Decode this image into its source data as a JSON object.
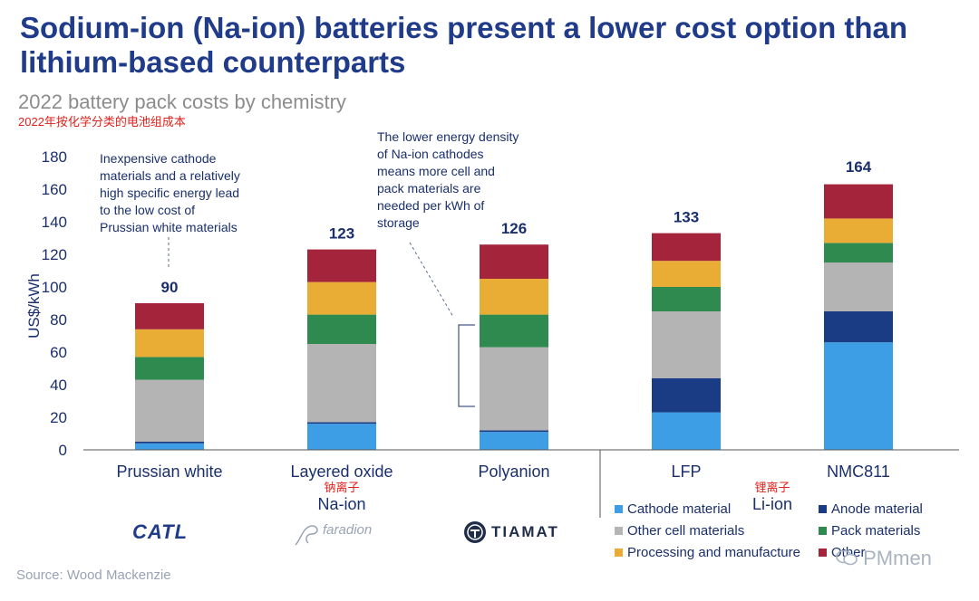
{
  "headline": "Sodium-ion (Na-ion) batteries present a lower cost option than lithium-based counterparts",
  "subtitle": "2022 battery pack costs by chemistry",
  "subtitle_cn": "2022年按化学分类的电池组成本",
  "source": "Source: Wood Mackenzie",
  "watermark": "PMmen",
  "logos": {
    "catl": "CATL",
    "faradion": "faradion",
    "tiamat": "TIAMAT"
  },
  "colors": {
    "cathode": "#3d9ee6",
    "anode": "#1a3c84",
    "other_cell": "#b4b4b4",
    "pack": "#2f8a4f",
    "processing": "#e9ad35",
    "other": "#a3243b",
    "axis_text": "#1a2f6e",
    "cn_text": "#e0211b"
  },
  "chart_data": {
    "type": "bar",
    "stacked": true,
    "ylabel": "US$/kWh",
    "ylim": [
      0,
      180
    ],
    "yticks": [
      0,
      20,
      40,
      60,
      80,
      100,
      120,
      140,
      160,
      180
    ],
    "grid": false,
    "categories": [
      "Prussian white",
      "Layered oxide",
      "Polyanion",
      "LFP",
      "NMC811"
    ],
    "totals": [
      90,
      123,
      126,
      133,
      164
    ],
    "series": [
      {
        "name": "Cathode material",
        "key": "cathode",
        "values": [
          4,
          16,
          11,
          23,
          66
        ]
      },
      {
        "name": "Anode material",
        "key": "anode",
        "values": [
          1,
          1,
          1,
          21,
          19
        ]
      },
      {
        "name": "Other cell materials",
        "key": "other_cell",
        "values": [
          38,
          48,
          51,
          41,
          30
        ]
      },
      {
        "name": "Pack materials",
        "key": "pack",
        "values": [
          14,
          18,
          20,
          15,
          12
        ]
      },
      {
        "name": "Processing and manufacture",
        "key": "processing",
        "values": [
          17,
          20,
          22,
          16,
          15
        ]
      },
      {
        "name": "Other",
        "key": "other",
        "values": [
          16,
          20,
          21,
          17,
          21
        ]
      }
    ],
    "groups": [
      {
        "label": "Na-ion",
        "label_cn": "钠离子",
        "categories": [
          "Prussian white",
          "Layered oxide",
          "Polyanion"
        ]
      },
      {
        "label": "Li-ion",
        "label_cn": "锂离子",
        "categories": [
          "LFP",
          "NMC811"
        ]
      }
    ],
    "legend": {
      "placement": "bottom-right",
      "items": [
        "Cathode material",
        "Anode material",
        "Other cell materials",
        "Pack materials",
        "Processing and manufacture",
        "Other"
      ]
    },
    "annotations": [
      {
        "lines": [
          "Inexpensive cathode",
          "materials and a relatively",
          "high specific energy lead",
          "to the low cost of",
          "Prussian white materials"
        ]
      },
      {
        "lines": [
          "The lower energy density",
          "of Na-ion cathodes",
          "means more cell and",
          "pack materials are",
          "needed per kWh of",
          "storage"
        ]
      }
    ]
  }
}
